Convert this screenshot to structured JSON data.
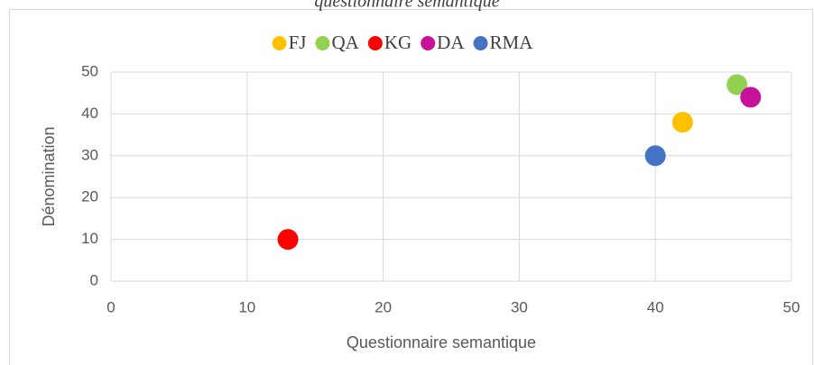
{
  "chart_data": {
    "type": "scatter",
    "title": "questionnaire semantique",
    "xlabel": "Questionnaire semantique",
    "ylabel": "Dénomination",
    "xlim": [
      0,
      50
    ],
    "xticks": [
      0,
      10,
      20,
      30,
      40,
      50
    ],
    "ylim": [
      0,
      50
    ],
    "yticks": [
      0,
      10,
      20,
      30,
      40,
      50
    ],
    "grid": true,
    "legend": "top",
    "series": [
      {
        "name": "FJ",
        "color": "#FFC000",
        "x": [
          42
        ],
        "values": [
          38
        ]
      },
      {
        "name": "QA",
        "color": "#92D050",
        "x": [
          46
        ],
        "values": [
          47
        ]
      },
      {
        "name": "KG",
        "color": "#FF0000",
        "x": [
          13
        ],
        "values": [
          10
        ]
      },
      {
        "name": "DA",
        "color": "#C8119B",
        "x": [
          47
        ],
        "values": [
          44
        ]
      },
      {
        "name": "RMA",
        "color": "#4472C4",
        "x": [
          40
        ],
        "values": [
          30
        ]
      }
    ]
  }
}
